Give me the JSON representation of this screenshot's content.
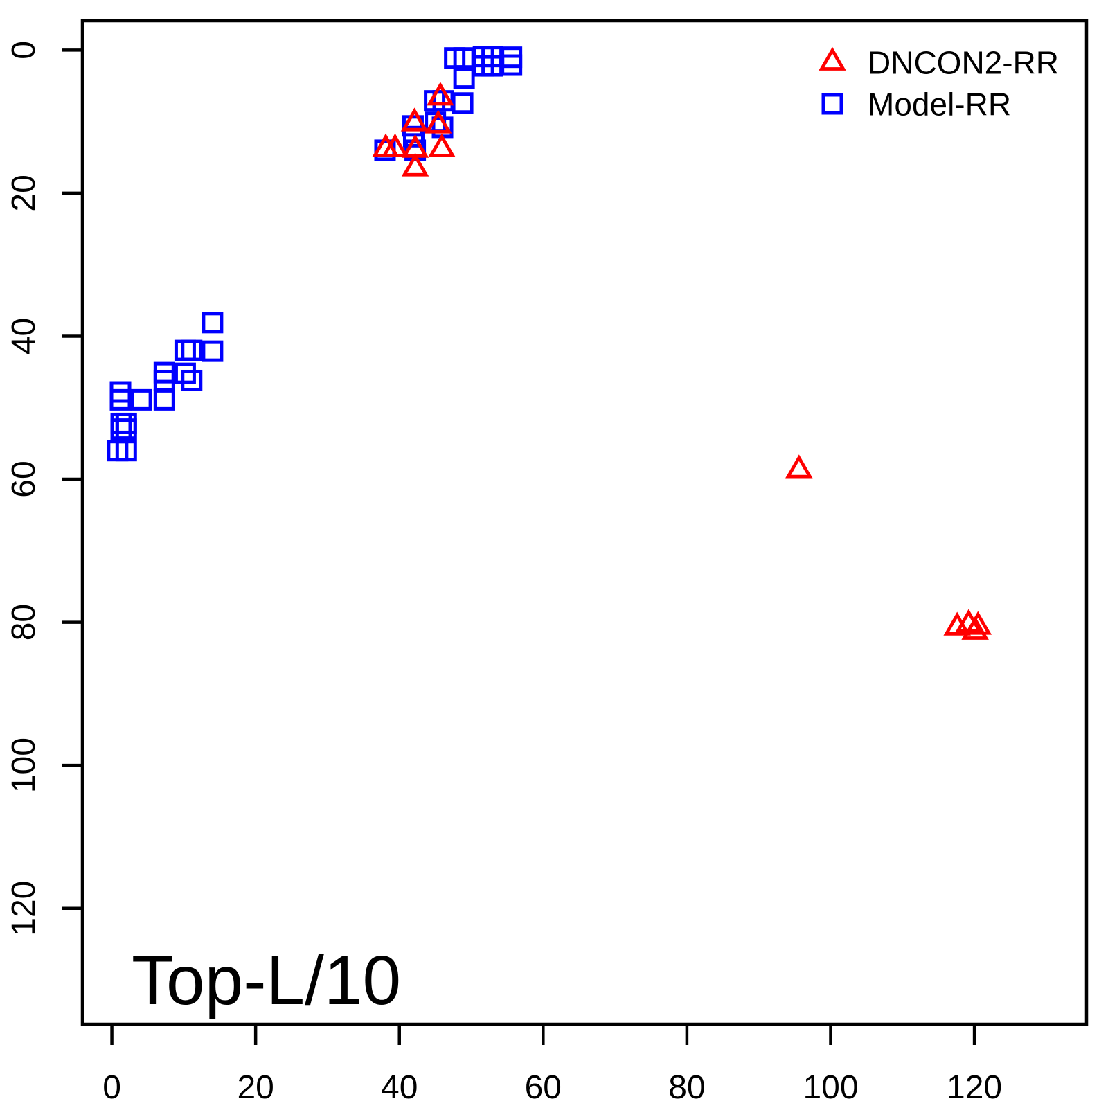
{
  "figure": {
    "background": "#ffffff",
    "annotation": "Top-L/10"
  },
  "legend": {
    "position": "top-right",
    "items": [
      {
        "label": "DNCON2-RR",
        "marker": "triangle-open-icon",
        "color": "#ff0000"
      },
      {
        "label": "Model-RR",
        "marker": "square-open-icon",
        "color": "#0000ff"
      }
    ]
  },
  "chart_data": {
    "type": "scatter",
    "title": "",
    "xlabel": "",
    "ylabel": "",
    "annotation": "Top-L/10",
    "grid": false,
    "x_ticks": [
      0,
      20,
      40,
      60,
      80,
      100,
      120
    ],
    "y_ticks": [
      0,
      20,
      40,
      60,
      80,
      100,
      120
    ],
    "xlim": [
      -4.1,
      135.6
    ],
    "ylim": [
      -4.1,
      136.2
    ],
    "y_axis_reversed": true,
    "series": [
      {
        "name": "Model-RR",
        "marker": "square",
        "color": "#0000ff",
        "points": [
          [
            47.7,
            1.1
          ],
          [
            49.0,
            1.1
          ],
          [
            51.7,
            0.9
          ],
          [
            52.9,
            0.9
          ],
          [
            51.7,
            2.2
          ],
          [
            52.9,
            2.2
          ],
          [
            55.6,
            1.0
          ],
          [
            55.6,
            2.1
          ],
          [
            49.0,
            3.9
          ],
          [
            44.9,
            7.1
          ],
          [
            46.1,
            7.1
          ],
          [
            48.8,
            7.4
          ],
          [
            41.9,
            10.6
          ],
          [
            42.0,
            12.1
          ],
          [
            45.0,
            10.1
          ],
          [
            46.0,
            10.8
          ],
          [
            38.0,
            14.0
          ],
          [
            42.2,
            14.0
          ],
          [
            14.0,
            38.1
          ],
          [
            10.2,
            42.0
          ],
          [
            11.1,
            42.0
          ],
          [
            14.0,
            42.1
          ],
          [
            7.3,
            45.1
          ],
          [
            7.3,
            46.2
          ],
          [
            10.2,
            45.2
          ],
          [
            11.1,
            46.2
          ],
          [
            1.2,
            47.8
          ],
          [
            1.2,
            48.9
          ],
          [
            4.1,
            48.9
          ],
          [
            7.3,
            48.9
          ],
          [
            1.3,
            52.2
          ],
          [
            2.0,
            52.2
          ],
          [
            1.3,
            53.0
          ],
          [
            2.0,
            53.0
          ],
          [
            0.8,
            56.0
          ],
          [
            2.0,
            56.0
          ]
        ]
      },
      {
        "name": "DNCON2-RR",
        "marker": "triangle",
        "color": "#ff0000",
        "points": [
          [
            45.7,
            6.6
          ],
          [
            42.1,
            10.2
          ],
          [
            45.4,
            10.5
          ],
          [
            38.1,
            13.8
          ],
          [
            39.4,
            13.8
          ],
          [
            42.2,
            13.9
          ],
          [
            45.9,
            13.8
          ],
          [
            42.2,
            16.5
          ],
          [
            95.6,
            58.7
          ],
          [
            117.6,
            80.7
          ],
          [
            119.2,
            80.3
          ],
          [
            120.5,
            80.6
          ],
          [
            120.1,
            81.3
          ]
        ]
      }
    ]
  }
}
